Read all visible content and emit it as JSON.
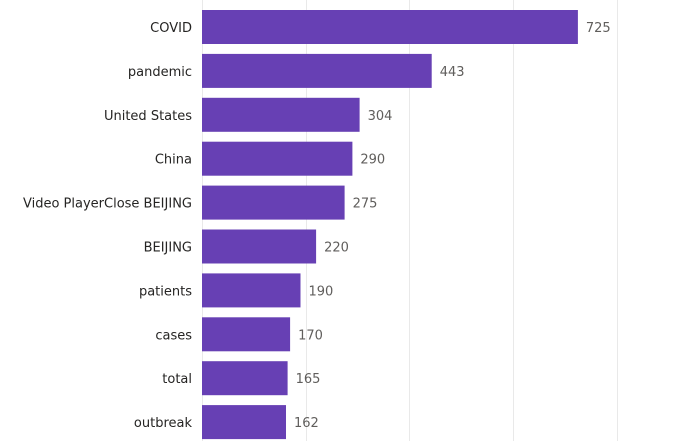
{
  "chart_data": {
    "type": "bar",
    "orientation": "horizontal",
    "categories": [
      "COVID",
      "pandemic",
      "United States",
      "China",
      "Video PlayerClose BEIJING",
      "BEIJING",
      "patients",
      "cases",
      "total",
      "outbreak"
    ],
    "values": [
      725,
      443,
      304,
      290,
      275,
      220,
      190,
      170,
      165,
      162
    ],
    "value_labels": [
      "725",
      "443",
      "304",
      "290",
      "275",
      "220",
      "190",
      "170",
      "165",
      "162"
    ],
    "title": "",
    "xlabel": "",
    "ylabel": "",
    "xlim": [
      0,
      800
    ],
    "gridlines": [
      0,
      200,
      400,
      600,
      800
    ],
    "grid": true,
    "legend": "none",
    "bar_color": "#6740b4"
  }
}
